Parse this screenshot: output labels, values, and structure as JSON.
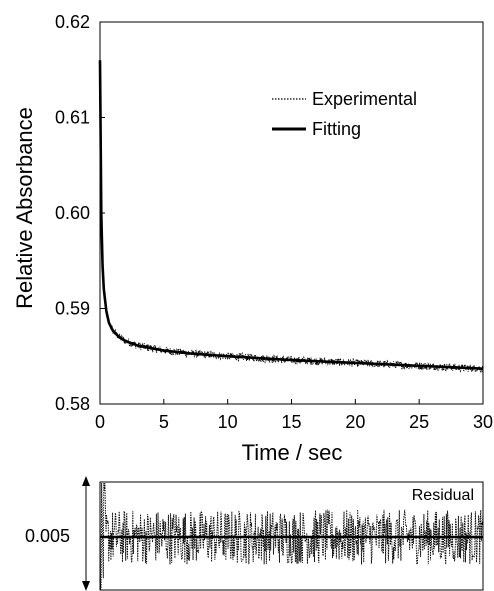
{
  "chart_data": [
    {
      "type": "line",
      "title": "",
      "xlabel": "Time / sec",
      "ylabel": "Relative Absorbance",
      "xlim": [
        0,
        30
      ],
      "ylim": [
        0.58,
        0.62
      ],
      "x_ticks": [
        "0",
        "5",
        "10",
        "15",
        "20",
        "25",
        "30"
      ],
      "y_ticks": [
        "0.58",
        "0.59",
        "0.60",
        "0.61",
        "0.62"
      ],
      "grid": false,
      "legend_position": "top-right",
      "series": [
        {
          "name": "Experimental",
          "style": "dotted",
          "color": "#000000",
          "noise_amplitude": 0.0004,
          "x": [
            0,
            0.05,
            0.1,
            0.2,
            0.3,
            0.5,
            0.7,
            1,
            1.5,
            2,
            3,
            5,
            7,
            10,
            15,
            20,
            25,
            30
          ],
          "y": [
            0.616,
            0.608,
            0.6,
            0.5945,
            0.592,
            0.5897,
            0.5885,
            0.5877,
            0.587,
            0.5866,
            0.5861,
            0.5856,
            0.5853,
            0.585,
            0.5846,
            0.5843,
            0.584,
            0.5837
          ]
        },
        {
          "name": "Fitting",
          "style": "solid",
          "color": "#000000",
          "x": [
            0,
            0.05,
            0.1,
            0.2,
            0.3,
            0.5,
            0.7,
            1,
            1.5,
            2,
            3,
            5,
            7,
            10,
            15,
            20,
            25,
            30
          ],
          "y": [
            0.616,
            0.608,
            0.6,
            0.5945,
            0.592,
            0.5897,
            0.5885,
            0.5877,
            0.587,
            0.5866,
            0.5861,
            0.5856,
            0.5853,
            0.585,
            0.5846,
            0.5843,
            0.584,
            0.5837
          ]
        }
      ]
    },
    {
      "type": "line",
      "title": "Residual",
      "xlabel": "",
      "ylabel": "",
      "xlim": [
        0,
        30
      ],
      "scale_label": "0.005",
      "scale_span": 0.005,
      "grid": false,
      "series": [
        {
          "name": "Residual",
          "style": "dotted",
          "color": "#000000",
          "baseline": 0,
          "noise_amplitude": 0.0013,
          "x": [
            0,
            30
          ],
          "y": [
            0,
            0
          ]
        }
      ]
    }
  ]
}
